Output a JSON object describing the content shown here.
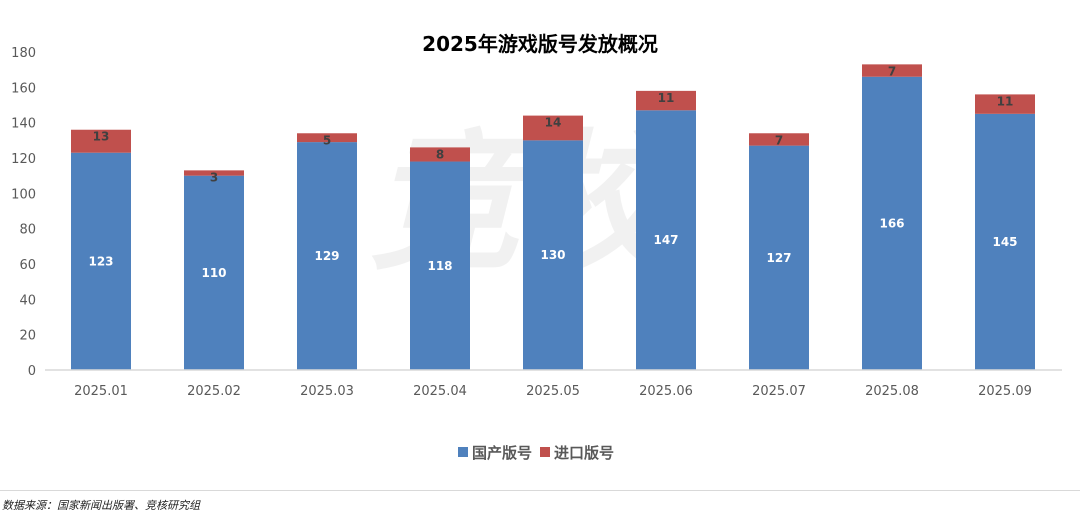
{
  "chart_data": {
    "type": "bar",
    "stacked": true,
    "title": "2025年游戏版号发放概况",
    "categories": [
      "2025.01",
      "2025.02",
      "2025.03",
      "2025.04",
      "2025.05",
      "2025.06",
      "2025.07",
      "2025.08",
      "2025.09"
    ],
    "series": [
      {
        "name": "国产版号",
        "color": "#4f81bd",
        "values": [
          123,
          110,
          129,
          118,
          130,
          147,
          127,
          166,
          145
        ]
      },
      {
        "name": "进口版号",
        "color": "#c0504d",
        "values": [
          13,
          3,
          5,
          8,
          14,
          11,
          7,
          7,
          11
        ]
      }
    ],
    "ylim": [
      0,
      180
    ],
    "yticks": [
      0,
      20,
      40,
      60,
      80,
      100,
      120,
      140,
      160,
      180
    ],
    "grid": false,
    "legend": "bottom"
  },
  "watermark": "竞校",
  "source": "数据来源：国家新闻出版署、竞核研究组"
}
